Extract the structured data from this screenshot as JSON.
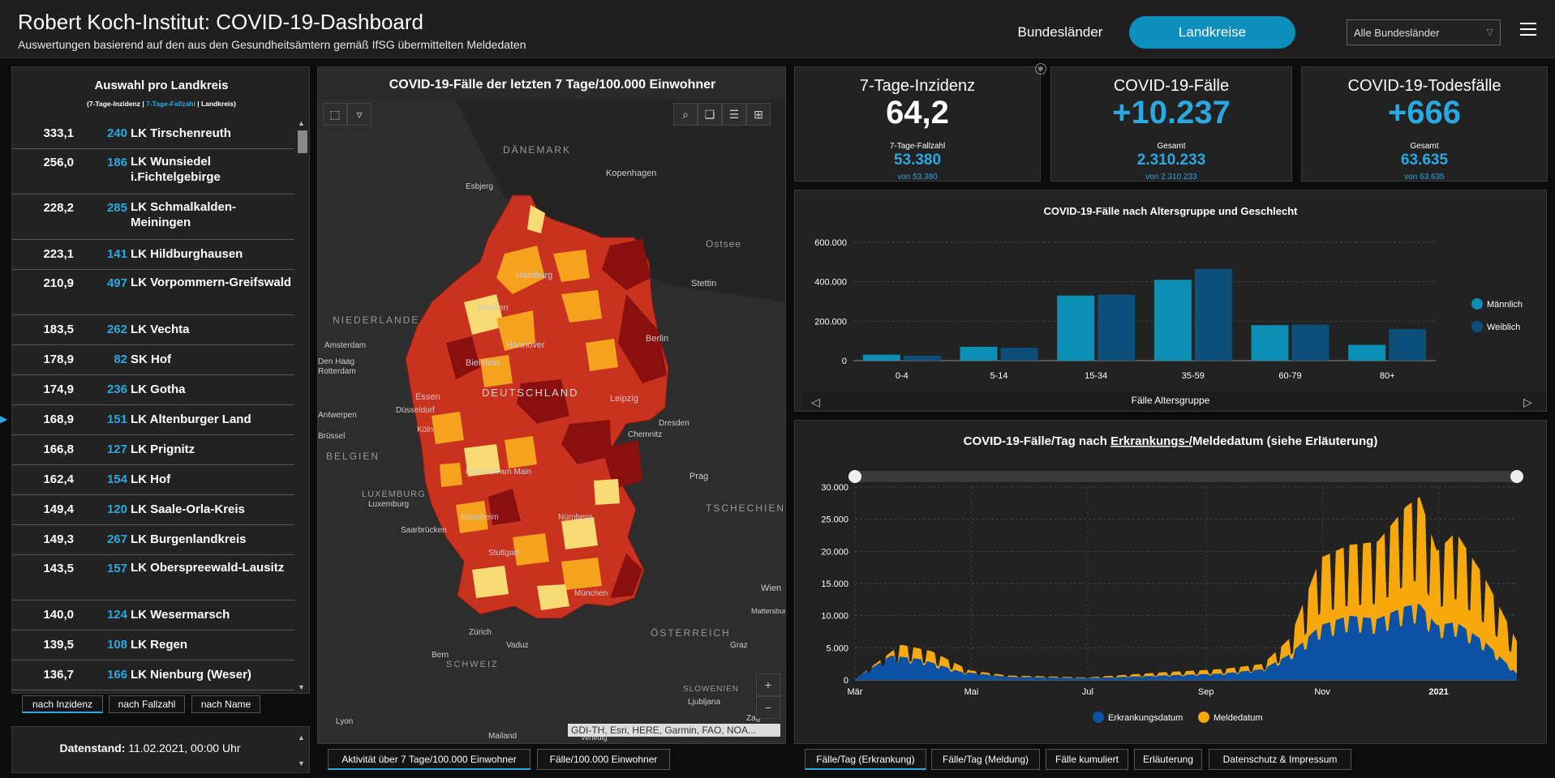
{
  "header": {
    "title": "Robert Koch-Institut: COVID-19-Dashboard",
    "subtitle": "Auswertungen basierend auf den aus den Gesundheitsämtern gemäß IfSG übermittelten Meldedaten",
    "btn_bundeslaender": "Bundesländer",
    "btn_landkreise": "Landkreise",
    "select_value": "Alle Bundesländer"
  },
  "list": {
    "title": "Auswahl pro Landkreis",
    "legend_a": "(7-Tage-Inzidenz | ",
    "legend_b": "7-Tage-Fallzahl",
    "legend_c": " | Landkreis)",
    "rows": [
      {
        "inc": "333,1",
        "cnt": "240",
        "name": "LK Tirschenreuth"
      },
      {
        "inc": "256,0",
        "cnt": "186",
        "name": "LK Wunsiedel i.Fichtelgebirge"
      },
      {
        "inc": "228,2",
        "cnt": "285",
        "name": "LK Schmalkalden-Meiningen"
      },
      {
        "inc": "223,1",
        "cnt": "141",
        "name": "LK Hildburghausen"
      },
      {
        "inc": "210,9",
        "cnt": "497",
        "name": "LK Vorpommern-Greifswald"
      },
      {
        "inc": "183,5",
        "cnt": "262",
        "name": "LK Vechta"
      },
      {
        "inc": "178,9",
        "cnt": "82",
        "name": "SK Hof"
      },
      {
        "inc": "174,9",
        "cnt": "236",
        "name": "LK Gotha"
      },
      {
        "inc": "168,9",
        "cnt": "151",
        "name": "LK Altenburger Land"
      },
      {
        "inc": "166,8",
        "cnt": "127",
        "name": "LK Prignitz"
      },
      {
        "inc": "162,4",
        "cnt": "154",
        "name": "LK Hof"
      },
      {
        "inc": "149,4",
        "cnt": "120",
        "name": "LK Saale-Orla-Kreis"
      },
      {
        "inc": "149,3",
        "cnt": "267",
        "name": "LK Burgenlandkreis"
      },
      {
        "inc": "143,5",
        "cnt": "157",
        "name": "LK Oberspreewald-Lausitz"
      },
      {
        "inc": "140,0",
        "cnt": "124",
        "name": "LK Wesermarsch"
      },
      {
        "inc": "139,5",
        "cnt": "108",
        "name": "LK Regen"
      },
      {
        "inc": "136,7",
        "cnt": "166",
        "name": "LK Nienburg (Weser)"
      }
    ],
    "sort_tabs": [
      "nach Inzidenz",
      "nach Fallzahl",
      "nach Name"
    ],
    "datum_label": "Datenstand:",
    "datum_value": "11.02.2021, 00:00 Uhr"
  },
  "map": {
    "title": "COVID-19-Fälle der letzten 7 Tage/100.000 Einwohner",
    "labels": {
      "daenemark": "DÄNEMARK",
      "kopenhagen": "Kopenhagen",
      "esbjerg": "Esbjerg",
      "ostsee": "Ostsee",
      "hamburg": "Hamburg",
      "stettin": "Stettin",
      "bremen": "Bremen",
      "niederlande": "NIEDERLANDE",
      "amsterdam": "Amsterdam",
      "hannover": "Hannover",
      "berlin": "Berlin",
      "denhaag": "Den Haag",
      "rotterdam": "Rotterdam",
      "bielefeld": "Bielefeld",
      "deutschland": "DEUTSCHLAND",
      "essen": "Essen",
      "duesseldorf": "Düsseldorf",
      "leipzig": "Leipzig",
      "antwerpen": "Antwerpen",
      "koeln": "Köln",
      "bruessel": "Brüssel",
      "chemnitz": "Chemnitz",
      "dresden": "Dresden",
      "belgien": "BELGIEN",
      "frankfurt": "Frankfurt am Main",
      "prag": "Prag",
      "luxemburg_c": "LUXEMBURG",
      "luxemburg": "Luxemburg",
      "tschechien": "TSCHECHIEN",
      "mannheim": "Mannheim",
      "nuernberg": "Nürnberg",
      "saarbruecken": "Saarbrücken",
      "stuttgart": "Stuttgart",
      "muenchen": "München",
      "wien": "Wien",
      "mattersburg": "Mattersburg",
      "zuerich": "Zürich",
      "oesterreich": "ÖSTERREICH",
      "vaduz": "Vaduz",
      "graz": "Graz",
      "bern": "Bern",
      "schweiz": "SCHWEIZ",
      "slowenien": "SLOWENIEN",
      "ljubljana": "Ljubljana",
      "lyon": "Lyon",
      "mailand": "Mailand",
      "zagreb": "Zag",
      "venedig": "Venedig"
    },
    "attribution": "GDI-TH, Esri, HERE, Garmin, FAO, NOA...",
    "tabs": [
      "Aktivität über 7 Tage/100.000 Einwohner",
      "Fälle/100.000 Einwohner"
    ]
  },
  "kpis": [
    {
      "title": "7-Tage-Inzidenz",
      "value": "64,2",
      "sub_title": "7-Tage-Fallzahl",
      "sub_value": "53.380",
      "sub_note": "von 53.380"
    },
    {
      "title": "COVID-19-Fälle",
      "value": "+10.237",
      "sub_title": "Gesamt",
      "sub_value": "2.310.233",
      "sub_note": "von 2.310.233"
    },
    {
      "title": "COVID-19-Todesfälle",
      "value": "+666",
      "sub_title": "Gesamt",
      "sub_value": "63.635",
      "sub_note": "von 63.635"
    }
  ],
  "age_chart": {
    "title": "COVID-19-Fälle nach Altersgruppe und Geschlecht",
    "xlabel": "Fälle Altersgruppe",
    "legend": [
      "Männlich",
      "Weiblich"
    ]
  },
  "ts_chart": {
    "title_a": "COVID-19-Fälle/Tag nach ",
    "title_b": "Erkrankungs-/",
    "title_c": "Meldedatum (siehe Erläuterung)",
    "legend": [
      "Erkrankungsdatum",
      "Meldedatum"
    ],
    "tabs": [
      "Fälle/Tag (Erkrankung)",
      "Fälle/Tag (Meldung)",
      "Fälle kumuliert",
      "Erläuterung",
      "Datenschutz & Impressum"
    ]
  },
  "colors": {
    "accent": "#0d8fbd",
    "blue_text": "#29a9e0",
    "male": "#0b8fb5",
    "female": "#0c4f7a",
    "erkrankung": "#0c52a4",
    "meldung": "#f7a80d",
    "map_very_high": "#8a1010",
    "map_high": "#c8321f",
    "map_mid": "#f5a21e",
    "map_low": "#f8db74"
  },
  "chart_data": [
    {
      "type": "bar",
      "title": "COVID-19-Fälle nach Altersgruppe und Geschlecht",
      "xlabel": "Fälle Altersgruppe",
      "ylabel": "",
      "categories": [
        "0-4",
        "5-14",
        "15-34",
        "35-59",
        "60-79",
        "80+"
      ],
      "series": [
        {
          "name": "Männlich",
          "values": [
            30000,
            70000,
            330000,
            410000,
            180000,
            80000
          ]
        },
        {
          "name": "Weiblich",
          "values": [
            25000,
            65000,
            335000,
            465000,
            182000,
            160000
          ]
        }
      ],
      "ylim": [
        0,
        600000
      ],
      "yticks": [
        "0",
        "200.000",
        "400.000",
        "600.000"
      ],
      "legend": "right",
      "grid": true
    },
    {
      "type": "area",
      "title": "COVID-19-Fälle/Tag nach Erkrankungs-/Meldedatum (siehe Erläuterung)",
      "xlabel": "",
      "ylabel": "",
      "x_ticks": [
        "Mär",
        "Mai",
        "Jul",
        "Sep",
        "Nov",
        "2021"
      ],
      "x_range": [
        "2020-03-01",
        "2021-02-11"
      ],
      "yticks": [
        "0",
        "5.000",
        "10.000",
        "15.000",
        "20.000",
        "25.000",
        "30.000"
      ],
      "ylim": [
        0,
        30000
      ],
      "series": [
        {
          "name": "Erkrankungsdatum",
          "points": [
            [
              "2020-03-01",
              200
            ],
            [
              "2020-03-20",
              3800
            ],
            [
              "2020-04-05",
              3200
            ],
            [
              "2020-04-25",
              1300
            ],
            [
              "2020-05-20",
              500
            ],
            [
              "2020-07-01",
              300
            ],
            [
              "2020-08-10",
              700
            ],
            [
              "2020-09-10",
              1000
            ],
            [
              "2020-10-01",
              1700
            ],
            [
              "2020-10-15",
              4000
            ],
            [
              "2020-10-31",
              8500
            ],
            [
              "2020-11-15",
              10000
            ],
            [
              "2020-11-30",
              9500
            ],
            [
              "2020-12-15",
              11500
            ],
            [
              "2020-12-22",
              11800
            ],
            [
              "2020-12-31",
              8500
            ],
            [
              "2021-01-10",
              9000
            ],
            [
              "2021-01-25",
              6000
            ],
            [
              "2021-02-11",
              1000
            ]
          ]
        },
        {
          "name": "Meldedatum",
          "points": [
            [
              "2020-03-01",
              100
            ],
            [
              "2020-03-25",
              5500
            ],
            [
              "2020-04-10",
              4500
            ],
            [
              "2020-04-30",
              1500
            ],
            [
              "2020-05-20",
              700
            ],
            [
              "2020-07-01",
              400
            ],
            [
              "2020-08-10",
              1200
            ],
            [
              "2020-09-10",
              1700
            ],
            [
              "2020-10-01",
              2500
            ],
            [
              "2020-10-15",
              6500
            ],
            [
              "2020-10-31",
              19000
            ],
            [
              "2020-11-15",
              21000
            ],
            [
              "2020-11-30",
              21500
            ],
            [
              "2020-12-15",
              27000
            ],
            [
              "2020-12-22",
              28500
            ],
            [
              "2020-12-31",
              20000
            ],
            [
              "2021-01-10",
              23000
            ],
            [
              "2021-01-25",
              16000
            ],
            [
              "2021-02-11",
              6000
            ]
          ]
        }
      ],
      "legend": "bottom",
      "grid": true
    }
  ]
}
